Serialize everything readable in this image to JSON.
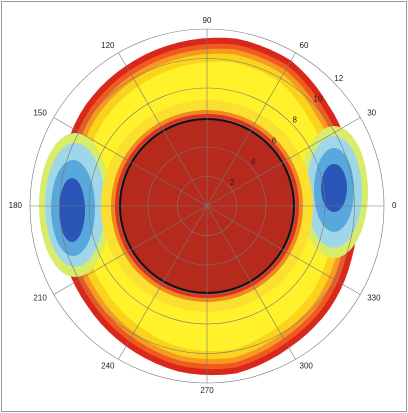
{
  "chart_data": {
    "type": "polar",
    "thetaticks": [
      0,
      30,
      60,
      90,
      120,
      150,
      180,
      210,
      240,
      270,
      300,
      330
    ],
    "rlim": [
      0,
      12
    ],
    "rticks": [
      2,
      4,
      6,
      8,
      10,
      12
    ],
    "grid": true
  }
}
